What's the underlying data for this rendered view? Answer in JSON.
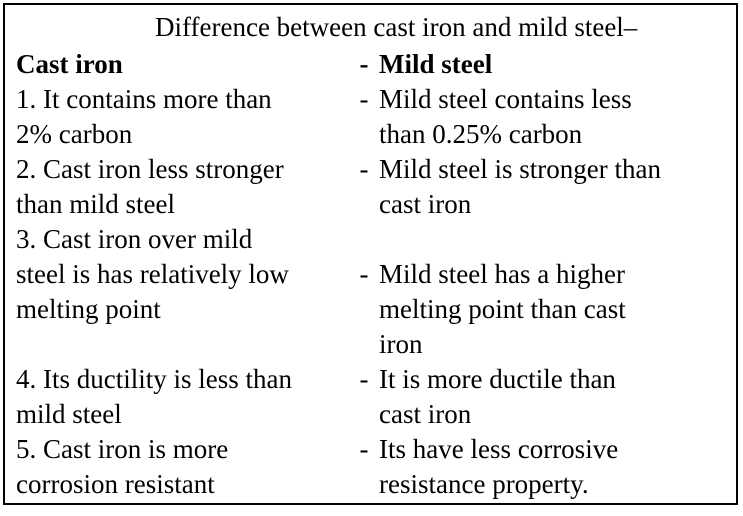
{
  "title": "Difference between cast iron and mild steel–",
  "header": {
    "left": "Cast iron",
    "separator": "-",
    "right": "Mild steel"
  },
  "rows": [
    {
      "left": "1. It contains more than\n2% carbon",
      "separator": "-",
      "right": "Mild steel contains less\nthan 0.25% carbon"
    },
    {
      "left": "2. Cast iron less stronger\nthan mild steel",
      "separator": "-",
      "right": "Mild steel is stronger than\ncast iron"
    },
    {
      "left": "3. Cast iron over mild\nsteel is has relatively low\nmelting point",
      "separator": "-",
      "right": "\nMild steel has a higher\nmelting point than cast\niron"
    },
    {
      "left": "4. Its ductility is less than\nmild steel",
      "separator": "-",
      "right": "It is more ductile than\ncast iron"
    },
    {
      "left": "5. Cast iron is more\ncorrosion resistant",
      "separator": "-",
      "right": "Its have less corrosive\nresistance property."
    }
  ]
}
